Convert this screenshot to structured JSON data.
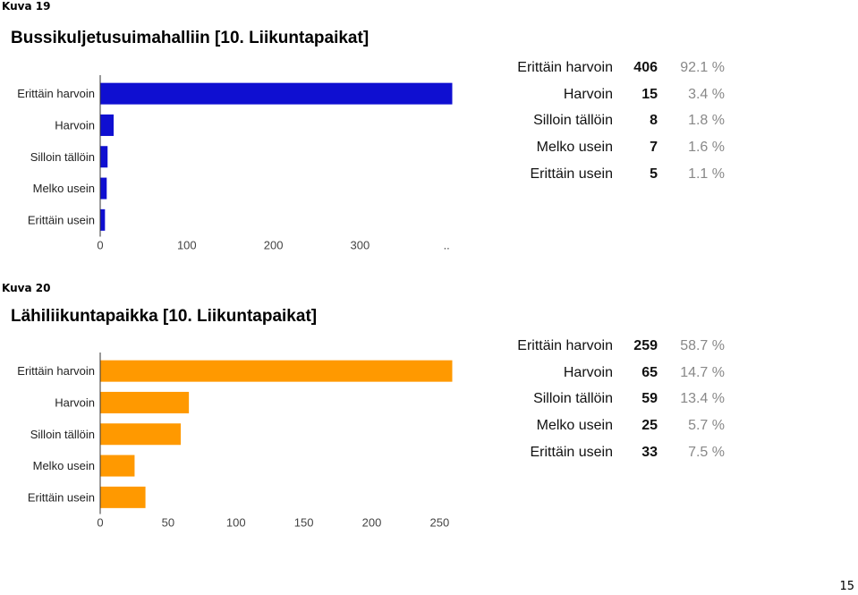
{
  "captions": [
    "Kuva 19",
    "Kuva 20"
  ],
  "page_number": "15",
  "chart_data": [
    {
      "type": "bar",
      "orientation": "horizontal",
      "title": "Bussikuljetusuimahalliin [10. Liikuntapaikat]",
      "categories": [
        "Erittäin harvoin",
        "Harvoin",
        "Silloin tällöin",
        "Melko usein",
        "Erittäin usein"
      ],
      "values": [
        406,
        15,
        8,
        7,
        5
      ],
      "percents": [
        "92.1 %",
        "3.4 %",
        "1.8 %",
        "1.6 %",
        "1.1 %"
      ],
      "xticks": [
        "0",
        "100",
        "200",
        "300",
        ".."
      ],
      "tick_values": [
        0,
        100,
        200,
        300,
        400
      ],
      "xlim": [
        0,
        406
      ],
      "color": "#0f0fd1"
    },
    {
      "type": "bar",
      "orientation": "horizontal",
      "title": "Lähiliikuntapaikka [10. Liikuntapaikat]",
      "categories": [
        "Erittäin harvoin",
        "Harvoin",
        "Silloin tällöin",
        "Melko usein",
        "Erittäin usein"
      ],
      "values": [
        259,
        65,
        59,
        25,
        33
      ],
      "percents": [
        "58.7 %",
        "14.7 %",
        "13.4 %",
        "5.7 %",
        "7.5 %"
      ],
      "xticks": [
        "0",
        "50",
        "100",
        "150",
        "200",
        "250"
      ],
      "tick_values": [
        0,
        50,
        100,
        150,
        200,
        250
      ],
      "xlim": [
        0,
        259
      ],
      "color": "#ff9900"
    }
  ]
}
